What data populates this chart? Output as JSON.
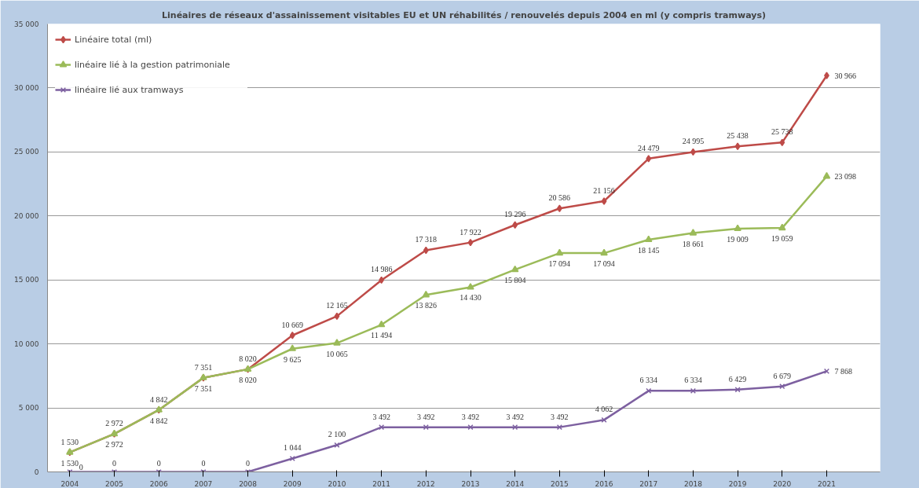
{
  "chart_data": {
    "type": "line",
    "title": "Linéaires de réseaux d'assainissement visitables EU et UN réhabilités / renouvelés depuis 2004 en ml (y compris tramways)",
    "categories": [
      "2004",
      "2005",
      "2006",
      "2007",
      "2008",
      "2009",
      "2010",
      "2011",
      "2012",
      "2013",
      "2014",
      "2015",
      "2016",
      "2017",
      "2018",
      "2019",
      "2020",
      "2021"
    ],
    "series": [
      {
        "name": "Linéaire total (ml)",
        "color": "#be4b48",
        "marker": "diamond",
        "values": [
          1530,
          2972,
          4842,
          7351,
          8020,
          10669,
          12165,
          14986,
          17318,
          17922,
          19296,
          20586,
          21156,
          24479,
          24995,
          25438,
          25738,
          30966
        ],
        "value_labels": [
          "1 530",
          "2 972",
          "4 842",
          "7 351",
          "8 020",
          "10 669",
          "12 165",
          "14 986",
          "17 318",
          "17 922",
          "19 296",
          "20 586",
          "21 156",
          "24 479",
          "24 995",
          "25 438",
          "25 738",
          "30 966"
        ]
      },
      {
        "name": "linéaire lié à la gestion patrimoniale",
        "color": "#9bbb59",
        "marker": "triangle",
        "values": [
          1530,
          2972,
          4842,
          7351,
          8020,
          9625,
          10065,
          11494,
          13826,
          14430,
          15804,
          17094,
          17094,
          18145,
          18661,
          19009,
          19059,
          23098
        ],
        "value_labels": [
          "1 530",
          "2 972",
          "4 842",
          "7 351",
          "8 020",
          "9 625",
          "10 065",
          "11 494",
          "13 826",
          "14 430",
          "15 804",
          "17 094",
          "17 094",
          "18 145",
          "18 661",
          "19 009",
          "19 059",
          "23 098"
        ]
      },
      {
        "name": "linéaire lié aux tramways",
        "color": "#7d60a0",
        "marker": "cross",
        "values": [
          0,
          0,
          0,
          0,
          0,
          1044,
          2100,
          3492,
          3492,
          3492,
          3492,
          3492,
          4062,
          6334,
          6334,
          6429,
          6679,
          7868
        ],
        "value_labels": [
          "0",
          "0",
          "0",
          "0",
          "0",
          "1 044",
          "2 100",
          "3 492",
          "3 492",
          "3 492",
          "3 492",
          "3 492",
          "4 062",
          "6 334",
          "6 334",
          "6 429",
          "6 679",
          "7 868"
        ]
      }
    ],
    "ylim": [
      0,
      35000
    ],
    "yticks": [
      {
        "value": 0,
        "label": "0"
      },
      {
        "value": 5000,
        "label": "5 000"
      },
      {
        "value": 10000,
        "label": "10 000"
      },
      {
        "value": 15000,
        "label": "15 000"
      },
      {
        "value": 20000,
        "label": "20 000"
      },
      {
        "value": 25000,
        "label": "25 000"
      },
      {
        "value": 30000,
        "label": "30 000"
      },
      {
        "value": 35000,
        "label": "35 000"
      }
    ],
    "grid": "y",
    "legend": "top left",
    "line_style": "solid"
  }
}
